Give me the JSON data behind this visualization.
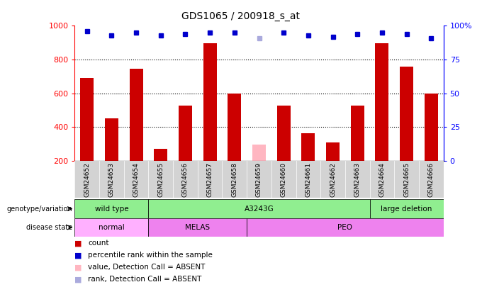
{
  "title": "GDS1065 / 200918_s_at",
  "samples": [
    "GSM24652",
    "GSM24653",
    "GSM24654",
    "GSM24655",
    "GSM24656",
    "GSM24657",
    "GSM24658",
    "GSM24659",
    "GSM24660",
    "GSM24661",
    "GSM24662",
    "GSM24663",
    "GSM24664",
    "GSM24665",
    "GSM24666"
  ],
  "counts": [
    690,
    450,
    745,
    270,
    525,
    895,
    600,
    null,
    525,
    365,
    310,
    525,
    895,
    760,
    600
  ],
  "absent_counts": [
    null,
    null,
    null,
    null,
    null,
    null,
    null,
    295,
    null,
    null,
    null,
    null,
    null,
    null,
    null
  ],
  "percentile_ranks": [
    96,
    93,
    95,
    93,
    94,
    95,
    95,
    null,
    95,
    93,
    92,
    94,
    95,
    94,
    91
  ],
  "absent_ranks": [
    null,
    null,
    null,
    null,
    null,
    null,
    null,
    91,
    null,
    null,
    null,
    null,
    null,
    null,
    null
  ],
  "ylim_left": [
    200,
    1000
  ],
  "ylim_right": [
    0,
    100
  ],
  "yticks_left": [
    200,
    400,
    600,
    800,
    1000
  ],
  "yticks_right": [
    0,
    25,
    50,
    75,
    100
  ],
  "grid_lines": [
    400,
    600,
    800
  ],
  "geno_groups": [
    {
      "label": "wild type",
      "start": 0,
      "end": 3
    },
    {
      "label": "A3243G",
      "start": 3,
      "end": 12
    },
    {
      "label": "large deletion",
      "start": 12,
      "end": 15
    }
  ],
  "dis_groups": [
    {
      "label": "normal",
      "start": 0,
      "end": 3,
      "color": "#FFB0FF"
    },
    {
      "label": "MELAS",
      "start": 3,
      "end": 7,
      "color": "#EE82EE"
    },
    {
      "label": "PEO",
      "start": 7,
      "end": 15,
      "color": "#EE82EE"
    }
  ],
  "bar_color_normal": "#CC0000",
  "bar_color_absent": "#FFB6C1",
  "dot_color_present": "#0000CC",
  "dot_color_absent": "#AAAADD",
  "geno_color": "#90EE90",
  "legend_items": [
    {
      "color": "#CC0000",
      "label": "count"
    },
    {
      "color": "#0000CC",
      "label": "percentile rank within the sample"
    },
    {
      "color": "#FFB6C1",
      "label": "value, Detection Call = ABSENT"
    },
    {
      "color": "#AAAADD",
      "label": "rank, Detection Call = ABSENT"
    }
  ]
}
